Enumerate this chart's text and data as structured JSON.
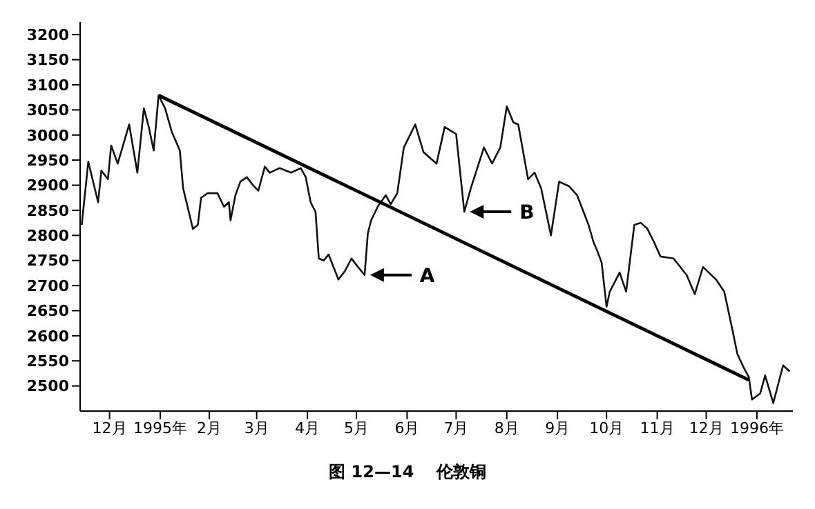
{
  "chart_data": {
    "type": "line",
    "title": "图 12—14　 伦敦铜",
    "xlim": [
      "1994-11-28",
      "1996-02-07"
    ],
    "xticks": [
      {
        "value": "1994-12-16",
        "label": "12月"
      },
      {
        "value": "1995-01-16",
        "label": "1995年"
      },
      {
        "value": "1995-02-15",
        "label": "2月"
      },
      {
        "value": "1995-03-16",
        "label": "3月"
      },
      {
        "value": "1995-04-16",
        "label": "4月"
      },
      {
        "value": "1995-05-16",
        "label": "5月"
      },
      {
        "value": "1995-06-16",
        "label": "6月"
      },
      {
        "value": "1995-07-16",
        "label": "7月"
      },
      {
        "value": "1995-08-16",
        "label": "8月"
      },
      {
        "value": "1995-09-16",
        "label": "9月"
      },
      {
        "value": "1995-10-16",
        "label": "10月"
      },
      {
        "value": "1995-11-16",
        "label": "11月"
      },
      {
        "value": "1995-12-16",
        "label": "12月"
      },
      {
        "value": "1996-01-16",
        "label": "1996年"
      }
    ],
    "ylim": [
      2450,
      3225
    ],
    "yticks": [
      2500,
      2550,
      2600,
      2650,
      2700,
      2750,
      2800,
      2850,
      2900,
      2950,
      3000,
      3050,
      3100,
      3150,
      3200
    ],
    "grid": false,
    "marker": "none",
    "line_style": "solid",
    "series": [
      {
        "color": "#111111",
        "x": [
          "1994-11-29",
          "1994-12-03",
          "1994-12-09",
          "1994-12-11",
          "1994-12-15",
          "1994-12-17",
          "1994-12-21",
          "1994-12-28",
          "1995-01-02",
          "1995-01-06",
          "1995-01-09",
          "1995-01-12",
          "1995-01-15",
          "1995-01-19",
          "1995-01-23",
          "1995-01-28",
          "1995-01-30",
          "1995-02-05",
          "1995-02-08",
          "1995-02-10",
          "1995-02-14",
          "1995-02-20",
          "1995-02-24",
          "1995-02-27",
          "1995-02-28",
          "1995-03-03",
          "1995-03-06",
          "1995-03-10",
          "1995-03-13",
          "1995-03-17",
          "1995-03-21",
          "1995-03-24",
          "1995-03-30",
          "1995-04-06",
          "1995-04-12",
          "1995-04-15",
          "1995-04-18",
          "1995-04-21",
          "1995-04-23",
          "1995-04-26",
          "1995-04-29",
          "1995-05-05",
          "1995-05-09",
          "1995-05-13",
          "1995-05-17",
          "1995-05-21",
          "1995-05-23",
          "1995-05-25",
          "1995-05-29",
          "1995-06-03",
          "1995-06-06",
          "1995-06-10",
          "1995-06-14",
          "1995-06-21",
          "1995-06-26",
          "1995-07-04",
          "1995-07-09",
          "1995-07-16",
          "1995-07-21",
          "1995-07-25",
          "1995-08-02",
          "1995-08-07",
          "1995-08-12",
          "1995-08-16",
          "1995-08-20",
          "1995-08-23",
          "1995-08-29",
          "1995-09-02",
          "1995-09-06",
          "1995-09-12",
          "1995-09-17",
          "1995-09-23",
          "1995-09-28",
          "1995-10-05",
          "1995-10-08",
          "1995-10-10",
          "1995-10-13",
          "1995-10-16",
          "1995-10-18",
          "1995-10-24",
          "1995-10-28",
          "1995-11-02",
          "1995-11-06",
          "1995-11-10",
          "1995-11-14",
          "1995-11-18",
          "1995-11-26",
          "1995-12-04",
          "1995-12-09",
          "1995-12-14",
          "1995-12-22",
          "1995-12-27",
          "1996-01-01",
          "1996-01-04",
          "1996-01-08",
          "1996-01-11",
          "1996-01-13",
          "1996-01-18",
          "1996-01-21",
          "1996-01-26",
          "1996-02-01",
          "1996-02-05"
        ],
        "values": [
          2821,
          2947,
          2866,
          2929,
          2912,
          2979,
          2943,
          3021,
          2925,
          3053,
          3016,
          2969,
          3079,
          3053,
          3007,
          2969,
          2894,
          2813,
          2821,
          2875,
          2884,
          2884,
          2857,
          2866,
          2830,
          2880,
          2907,
          2916,
          2903,
          2889,
          2937,
          2925,
          2934,
          2925,
          2934,
          2916,
          2866,
          2847,
          2754,
          2750,
          2762,
          2712,
          2729,
          2754,
          2737,
          2721,
          2804,
          2830,
          2857,
          2880,
          2862,
          2884,
          2975,
          3021,
          2966,
          2943,
          3016,
          3002,
          2847,
          2894,
          2975,
          2943,
          2975,
          3057,
          3025,
          3021,
          2912,
          2925,
          2894,
          2800,
          2907,
          2898,
          2880,
          2821,
          2787,
          2772,
          2746,
          2658,
          2688,
          2726,
          2688,
          2821,
          2825,
          2813,
          2787,
          2758,
          2754,
          2721,
          2683,
          2737,
          2712,
          2688,
          2612,
          2564,
          2536,
          2518,
          2473,
          2485,
          2521,
          2466,
          2541,
          2529
        ]
      },
      {
        "type": "line",
        "color": "#000000",
        "x": [
          "1995-01-15",
          "1996-01-11"
        ],
        "values": [
          3079,
          2512
        ]
      }
    ],
    "annotations": [
      {
        "text": "A",
        "x": "1995-05-21",
        "y": 2721
      },
      {
        "text": "B",
        "x": "1995-07-21",
        "y": 2847
      }
    ]
  }
}
